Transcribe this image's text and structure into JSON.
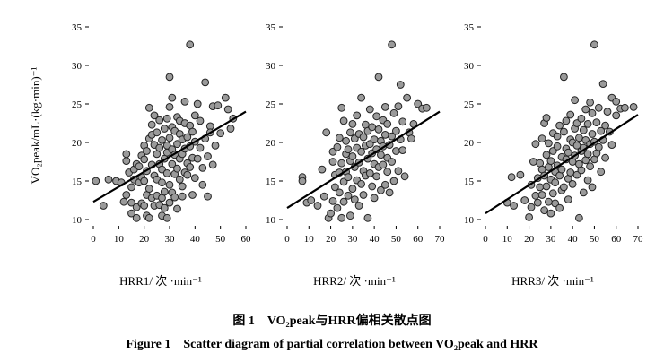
{
  "y_axis_label": "VO₂peak/mL·(kg·min)⁻¹",
  "caption_cn": "图 1　VO₂peak与HRR偏相关散点图",
  "caption_en": "Figure 1　Scatter diagram of partial correlation between VO₂peak and HRR",
  "style": {
    "point_fill": "#9a9a9a",
    "point_stroke": "#222222",
    "line_color": "#000000"
  },
  "chart_data": [
    {
      "type": "scatter",
      "xlabel": "HRR1/ 次 ·min⁻¹",
      "ylabel": "VO₂peak/mL·(kg·min)⁻¹",
      "xlim": [
        0,
        60
      ],
      "ylim": [
        10,
        35
      ],
      "xticks": [
        "0",
        "10",
        "20",
        "30",
        "40",
        "50",
        "60"
      ],
      "yticks": [
        "10",
        "15",
        "20",
        "25",
        "30",
        "35"
      ],
      "trend": [
        [
          0,
          12.3
        ],
        [
          60,
          24.0
        ]
      ],
      "points": [
        [
          1,
          15
        ],
        [
          4,
          11.8
        ],
        [
          6,
          15.2
        ],
        [
          9,
          15
        ],
        [
          11,
          14.8
        ],
        [
          12,
          12.3
        ],
        [
          13,
          13.2
        ],
        [
          13,
          17.6
        ],
        [
          13,
          18.5
        ],
        [
          14,
          16.1
        ],
        [
          15,
          14.2
        ],
        [
          15,
          12.2
        ],
        [
          15,
          10.8
        ],
        [
          16,
          16.5
        ],
        [
          16,
          15.2
        ],
        [
          17,
          17.2
        ],
        [
          17,
          11.6
        ],
        [
          17,
          10.2
        ],
        [
          18,
          14.8
        ],
        [
          18,
          16.9
        ],
        [
          19,
          12.1
        ],
        [
          19,
          18.3
        ],
        [
          19,
          15.5
        ],
        [
          20,
          11.8
        ],
        [
          20,
          15
        ],
        [
          20,
          17.8
        ],
        [
          20,
          19.6
        ],
        [
          21,
          10.5
        ],
        [
          21,
          13.2
        ],
        [
          21,
          16.3
        ],
        [
          21,
          18.9
        ],
        [
          22,
          10.2
        ],
        [
          22,
          20.5
        ],
        [
          22,
          14
        ],
        [
          22,
          24.5
        ],
        [
          23,
          22.3
        ],
        [
          23,
          21
        ],
        [
          23,
          12.8
        ],
        [
          23,
          17.1
        ],
        [
          24,
          19.7
        ],
        [
          24,
          15.7
        ],
        [
          24,
          11.8
        ],
        [
          24,
          23.5
        ],
        [
          25,
          15.2
        ],
        [
          25,
          18.5
        ],
        [
          25,
          13.1
        ],
        [
          25,
          21.3
        ],
        [
          26,
          17.2
        ],
        [
          26,
          11.9
        ],
        [
          26,
          19.3
        ],
        [
          26,
          22.9
        ],
        [
          27,
          12.8
        ],
        [
          27,
          14.8
        ],
        [
          27,
          16.5
        ],
        [
          27,
          20.3
        ],
        [
          27,
          10.5
        ],
        [
          28,
          17.9
        ],
        [
          28,
          13.6
        ],
        [
          28,
          21.8
        ],
        [
          28,
          11.5
        ],
        [
          29,
          18.7
        ],
        [
          29,
          16
        ],
        [
          29,
          23.1
        ],
        [
          29,
          19.6
        ],
        [
          29,
          10.2
        ],
        [
          30,
          28.5
        ],
        [
          30,
          12.2
        ],
        [
          30,
          20.6
        ],
        [
          30,
          14.5
        ],
        [
          30,
          24.6
        ],
        [
          31,
          22
        ],
        [
          31,
          17.2
        ],
        [
          31,
          19.1
        ],
        [
          31,
          13.5
        ],
        [
          31,
          25.8
        ],
        [
          32,
          15.9
        ],
        [
          32,
          21.5
        ],
        [
          32,
          18.4
        ],
        [
          32,
          12.9
        ],
        [
          33,
          19.8
        ],
        [
          33,
          16.6
        ],
        [
          33,
          23.3
        ],
        [
          33,
          11.4
        ],
        [
          34,
          15.2
        ],
        [
          34,
          17.9
        ],
        [
          34,
          21.1
        ],
        [
          34,
          22.8
        ],
        [
          35,
          18.5
        ],
        [
          35,
          20.4
        ],
        [
          35,
          14.3
        ],
        [
          35,
          13
        ],
        [
          36,
          22.5
        ],
        [
          36,
          16.1
        ],
        [
          36,
          19.2
        ],
        [
          36,
          25.3
        ],
        [
          37,
          17.3
        ],
        [
          37,
          20.7
        ],
        [
          37,
          15.8
        ],
        [
          38,
          32.7
        ],
        [
          38,
          19.5
        ],
        [
          38,
          22.2
        ],
        [
          38,
          16.8
        ],
        [
          39,
          13.2
        ],
        [
          39,
          21.4
        ],
        [
          39,
          18
        ],
        [
          40,
          20.1
        ],
        [
          40,
          23.5
        ],
        [
          40,
          15.4
        ],
        [
          41,
          17.9
        ],
        [
          41,
          25
        ],
        [
          42,
          19.3
        ],
        [
          42,
          22.8
        ],
        [
          43,
          16.7
        ],
        [
          43,
          14.5
        ],
        [
          44,
          20.5
        ],
        [
          44,
          27.8
        ],
        [
          45,
          18.2
        ],
        [
          45,
          13
        ],
        [
          46,
          22.1
        ],
        [
          46,
          21.3
        ],
        [
          47,
          24.7
        ],
        [
          47,
          17.1
        ],
        [
          48,
          19.6
        ],
        [
          49,
          24.8
        ],
        [
          50,
          21.2
        ],
        [
          52,
          25.8
        ],
        [
          53,
          24.3
        ],
        [
          54,
          21.8
        ],
        [
          55,
          23.1
        ]
      ]
    },
    {
      "type": "scatter",
      "xlabel": "HRR2/ 次 ·min⁻¹",
      "ylabel": "",
      "xlim": [
        0,
        70
      ],
      "ylim": [
        10,
        35
      ],
      "xticks": [
        "0",
        "10",
        "20",
        "30",
        "40",
        "50",
        "60",
        "70"
      ],
      "yticks": [
        "10",
        "15",
        "20",
        "25",
        "30",
        "35"
      ],
      "trend": [
        [
          0,
          11.5
        ],
        [
          70,
          24.0
        ]
      ],
      "points": [
        [
          7,
          15.5
        ],
        [
          7,
          15
        ],
        [
          9,
          12.2
        ],
        [
          11,
          12.5
        ],
        [
          14,
          11.8
        ],
        [
          16,
          16.5
        ],
        [
          17,
          13
        ],
        [
          18,
          21.3
        ],
        [
          19,
          10.2
        ],
        [
          20,
          10.8
        ],
        [
          21,
          17.5
        ],
        [
          21,
          12.4
        ],
        [
          21,
          18.8
        ],
        [
          22,
          14.2
        ],
        [
          22,
          15.8
        ],
        [
          23,
          11.5
        ],
        [
          23,
          19.4
        ],
        [
          24,
          16.1
        ],
        [
          24,
          13.5
        ],
        [
          24,
          20.6
        ],
        [
          25,
          10.2
        ],
        [
          25,
          24.5
        ],
        [
          25,
          17.3
        ],
        [
          26,
          14.9
        ],
        [
          26,
          22.8
        ],
        [
          26,
          12.3
        ],
        [
          27,
          18.5
        ],
        [
          27,
          16.2
        ],
        [
          27,
          20.2
        ],
        [
          28,
          13.1
        ],
        [
          28,
          15.5
        ],
        [
          28,
          19.1
        ],
        [
          29,
          10.5
        ],
        [
          29,
          21.3
        ],
        [
          29,
          17.6
        ],
        [
          30,
          14
        ],
        [
          30,
          18.2
        ],
        [
          30,
          22.4
        ],
        [
          31,
          12.6
        ],
        [
          31,
          16.8
        ],
        [
          31,
          20.5
        ],
        [
          32,
          15.1
        ],
        [
          32,
          19.3
        ],
        [
          32,
          23.5
        ],
        [
          33,
          11.8
        ],
        [
          33,
          17.4
        ],
        [
          33,
          21.1
        ],
        [
          34,
          14.6
        ],
        [
          34,
          18.8
        ],
        [
          34,
          25.8
        ],
        [
          35,
          16.3
        ],
        [
          35,
          20.7
        ],
        [
          35,
          13.2
        ],
        [
          36,
          19.6
        ],
        [
          36,
          22.3
        ],
        [
          36,
          15.7
        ],
        [
          37,
          17.9
        ],
        [
          37,
          10.2
        ],
        [
          37,
          21.5
        ],
        [
          38,
          16
        ],
        [
          38,
          19.8
        ],
        [
          38,
          24.3
        ],
        [
          39,
          14.3
        ],
        [
          39,
          18.6
        ],
        [
          39,
          22
        ],
        [
          40,
          17.2
        ],
        [
          40,
          20.4
        ],
        [
          40,
          12.8
        ],
        [
          41,
          19.1
        ],
        [
          41,
          23.4
        ],
        [
          41,
          15.6
        ],
        [
          42,
          16.8
        ],
        [
          42,
          21.7
        ],
        [
          42,
          28.5
        ],
        [
          43,
          18.4
        ],
        [
          43,
          20.2
        ],
        [
          43,
          13.8
        ],
        [
          44,
          22.9
        ],
        [
          44,
          17.1
        ],
        [
          44,
          19.5
        ],
        [
          45,
          14.5
        ],
        [
          45,
          21
        ],
        [
          45,
          24.6
        ],
        [
          46,
          18
        ],
        [
          46,
          16.2
        ],
        [
          46,
          22.4
        ],
        [
          47,
          19.7
        ],
        [
          47,
          13.5
        ],
        [
          48,
          20.8
        ],
        [
          48,
          17.5
        ],
        [
          48,
          32.7
        ],
        [
          49,
          15
        ],
        [
          49,
          23.8
        ],
        [
          50,
          21.5
        ],
        [
          50,
          18.9
        ],
        [
          51,
          24.7
        ],
        [
          51,
          16.3
        ],
        [
          52,
          27.5
        ],
        [
          52,
          20.4
        ],
        [
          53,
          19
        ],
        [
          53,
          22.7
        ],
        [
          54,
          15.6
        ],
        [
          55,
          25.8
        ],
        [
          56,
          21.3
        ],
        [
          57,
          20.5
        ],
        [
          58,
          22.4
        ],
        [
          60,
          25
        ],
        [
          62,
          24.4
        ],
        [
          64,
          24.5
        ]
      ]
    },
    {
      "type": "scatter",
      "xlabel": "HRR3/ 次 ·min⁻¹",
      "ylabel": "",
      "xlim": [
        0,
        70
      ],
      "ylim": [
        10,
        35
      ],
      "xticks": [
        "0",
        "10",
        "20",
        "30",
        "40",
        "50",
        "60",
        "70"
      ],
      "yticks": [
        "10",
        "15",
        "20",
        "25",
        "30",
        "35"
      ],
      "trend": [
        [
          0,
          10.8
        ],
        [
          70,
          23.6
        ]
      ],
      "points": [
        [
          10,
          12.2
        ],
        [
          12,
          15.5
        ],
        [
          13,
          11.8
        ],
        [
          16,
          15.8
        ],
        [
          18,
          12.5
        ],
        [
          20,
          10.3
        ],
        [
          21,
          11.6
        ],
        [
          21,
          14.5
        ],
        [
          22,
          17.5
        ],
        [
          23,
          13.1
        ],
        [
          23,
          19.8
        ],
        [
          24,
          12.2
        ],
        [
          24,
          15.4
        ],
        [
          25,
          14.2
        ],
        [
          25,
          17.3
        ],
        [
          26,
          13.2
        ],
        [
          26,
          16.5
        ],
        [
          26,
          20.5
        ],
        [
          27,
          11.2
        ],
        [
          27,
          15.7
        ],
        [
          27,
          22.5
        ],
        [
          28,
          14.3
        ],
        [
          28,
          18.4
        ],
        [
          28,
          23.2
        ],
        [
          29,
          12.3
        ],
        [
          29,
          16.8
        ],
        [
          29,
          19.9
        ],
        [
          30,
          15.2
        ],
        [
          30,
          17.6
        ],
        [
          30,
          10.8
        ],
        [
          31,
          13.4
        ],
        [
          31,
          18.9
        ],
        [
          31,
          21.2
        ],
        [
          32,
          16.2
        ],
        [
          32,
          14.8
        ],
        [
          32,
          12.1
        ],
        [
          33,
          19.5
        ],
        [
          33,
          17
        ],
        [
          33,
          20.8
        ],
        [
          34,
          15.7
        ],
        [
          34,
          11.5
        ],
        [
          34,
          22.2
        ],
        [
          35,
          18.1
        ],
        [
          35,
          16.5
        ],
        [
          35,
          13.8
        ],
        [
          36,
          28.5
        ],
        [
          36,
          21.4
        ],
        [
          36,
          14.2
        ],
        [
          37,
          17.8
        ],
        [
          37,
          19.2
        ],
        [
          37,
          22.8
        ],
        [
          38,
          15.3
        ],
        [
          38,
          18.7
        ],
        [
          38,
          12.6
        ],
        [
          39,
          20.4
        ],
        [
          39,
          16.1
        ],
        [
          39,
          23.6
        ],
        [
          40,
          17.5
        ],
        [
          40,
          14.6
        ],
        [
          40,
          20
        ],
        [
          41,
          21.8
        ],
        [
          41,
          18.3
        ],
        [
          41,
          25.5
        ],
        [
          42,
          15.8
        ],
        [
          42,
          19.6
        ],
        [
          42,
          22.5
        ],
        [
          43,
          17.2
        ],
        [
          43,
          20.6
        ],
        [
          43,
          10.2
        ],
        [
          44,
          18.9
        ],
        [
          44,
          23.1
        ],
        [
          44,
          16.4
        ],
        [
          45,
          21.6
        ],
        [
          45,
          19.3
        ],
        [
          45,
          13.5
        ],
        [
          46,
          24.3
        ],
        [
          46,
          17.7
        ],
        [
          46,
          20.3
        ],
        [
          47,
          18.5
        ],
        [
          47,
          22.4
        ],
        [
          47,
          15.1
        ],
        [
          48,
          19.8
        ],
        [
          48,
          25.2
        ],
        [
          48,
          16.9
        ],
        [
          49,
          21.1
        ],
        [
          49,
          14.2
        ],
        [
          49,
          23.8
        ],
        [
          50,
          32.7
        ],
        [
          50,
          20.1
        ],
        [
          50,
          17.8
        ],
        [
          51,
          22.6
        ],
        [
          51,
          18.6
        ],
        [
          52,
          19.4
        ],
        [
          52,
          24.5
        ],
        [
          53,
          16.2
        ],
        [
          53,
          21.5
        ],
        [
          54,
          27.6
        ],
        [
          54,
          20.3
        ],
        [
          55,
          22.2
        ],
        [
          55,
          18
        ],
        [
          56,
          24
        ],
        [
          57,
          21.4
        ],
        [
          58,
          25.8
        ],
        [
          58,
          19.7
        ],
        [
          60,
          23.5
        ],
        [
          60,
          25.3
        ],
        [
          62,
          24.4
        ],
        [
          64,
          24.5
        ],
        [
          68,
          24.6
        ]
      ]
    }
  ]
}
